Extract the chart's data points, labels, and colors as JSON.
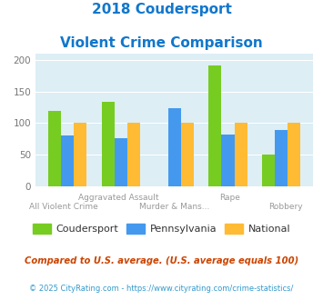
{
  "title_line1": "2018 Coudersport",
  "title_line2": "Violent Crime Comparison",
  "categories": [
    "All Violent Crime",
    "Aggravated Assault",
    "Murder & Mans...",
    "Rape",
    "Robbery"
  ],
  "label_top": [
    "",
    "Aggravated Assault",
    "",
    "Rape",
    ""
  ],
  "label_bot": [
    "All Violent Crime",
    "",
    "Murder & Mans...",
    "",
    "Robbery"
  ],
  "coudersport": [
    119,
    134,
    0,
    192,
    50
  ],
  "pennsylvania": [
    80,
    76,
    124,
    82,
    89
  ],
  "national": [
    100,
    100,
    100,
    100,
    100
  ],
  "colors": {
    "coudersport": "#77cc22",
    "pennsylvania": "#4499ee",
    "national": "#ffbb33"
  },
  "ylim": [
    0,
    210
  ],
  "yticks": [
    0,
    50,
    100,
    150,
    200
  ],
  "background_color": "#ddeef5",
  "title_color": "#1177cc",
  "xlabel_color": "#999999",
  "legend_label_color": "#333333",
  "footnote1": "Compared to U.S. average. (U.S. average equals 100)",
  "footnote2": "© 2025 CityRating.com - https://www.cityrating.com/crime-statistics/",
  "footnote1_color": "#cc4400",
  "footnote2_color": "#3399cc"
}
